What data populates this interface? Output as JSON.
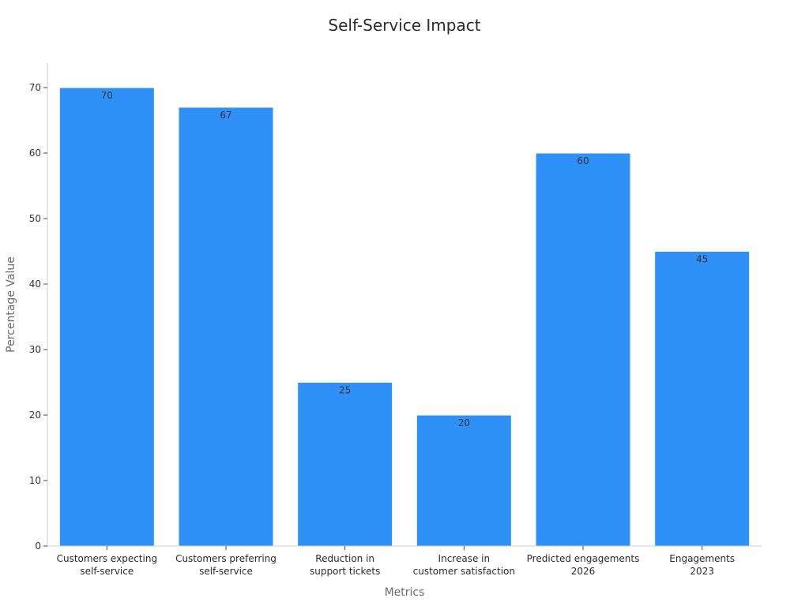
{
  "chart_data": {
    "type": "bar",
    "title": "Self-Service Impact",
    "xlabel": "Metrics",
    "ylabel": "Percentage Value",
    "categories": [
      [
        "Customers expecting",
        "self-service"
      ],
      [
        "Customers preferring",
        "self-service"
      ],
      [
        "Reduction in",
        "support tickets"
      ],
      [
        "Increase in",
        "customer satisfaction"
      ],
      [
        "Predicted engagements",
        "2026"
      ],
      [
        "Engagements",
        "2023"
      ]
    ],
    "values": [
      70,
      67,
      25,
      20,
      60,
      45
    ],
    "ylim": [
      0,
      74
    ],
    "yticks": [
      0,
      10,
      20,
      30,
      40,
      50,
      60,
      70
    ],
    "bar_color": "#2f91f8",
    "grid": false
  }
}
